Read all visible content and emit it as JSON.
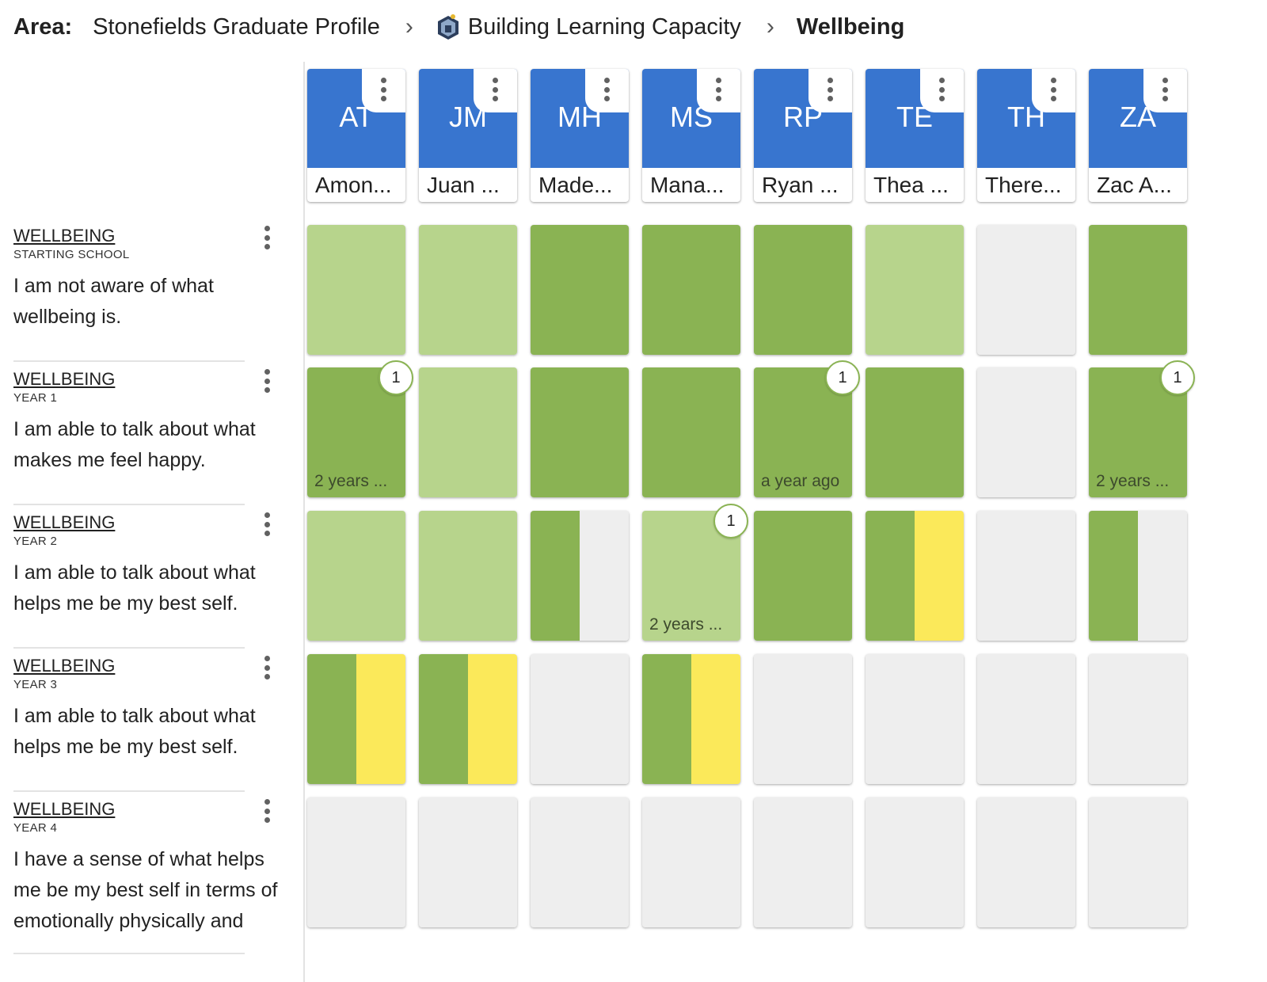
{
  "colors": {
    "accent_blue": "#3875cf",
    "green_dark": "#8ab353",
    "green_light": "#b7d48c",
    "yellow": "#fbe95a",
    "empty": "#eeeeee"
  },
  "breadcrumb": {
    "area_label": "Area:",
    "items": [
      "Stonefields Graduate Profile",
      "Building Learning Capacity",
      "Wellbeing"
    ]
  },
  "students": [
    {
      "initials": "AT",
      "name": "Amon..."
    },
    {
      "initials": "JM",
      "name": "Juan ..."
    },
    {
      "initials": "MH",
      "name": "Made..."
    },
    {
      "initials": "MS",
      "name": "Mana..."
    },
    {
      "initials": "RP",
      "name": "Ryan ..."
    },
    {
      "initials": "TE",
      "name": "Thea ..."
    },
    {
      "initials": "TH",
      "name": "There..."
    },
    {
      "initials": "ZA",
      "name": "Zac A..."
    }
  ],
  "rows": [
    {
      "title": "WELLBEING",
      "level": "STARTING SCHOOL",
      "description": "I am not aware of what wellbeing is."
    },
    {
      "title": "WELLBEING",
      "level": "YEAR 1",
      "description": "I am able to talk about what makes me feel happy."
    },
    {
      "title": "WELLBEING",
      "level": "YEAR 2",
      "description": "I am able to talk about what helps me be my best self."
    },
    {
      "title": "WELLBEING",
      "level": "YEAR 3",
      "description": "I am able to talk about what helps me be my best self."
    },
    {
      "title": "WELLBEING",
      "level": "YEAR 4",
      "description": "I have a sense of what helps me be my best self in terms of emotionally physically and"
    }
  ],
  "grid": [
    [
      {
        "fill": [
          "green_light"
        ]
      },
      {
        "fill": [
          "green_light"
        ]
      },
      {
        "fill": [
          "green_dark"
        ]
      },
      {
        "fill": [
          "green_dark"
        ]
      },
      {
        "fill": [
          "green_dark"
        ]
      },
      {
        "fill": [
          "green_light"
        ]
      },
      {
        "fill": [
          "empty"
        ]
      },
      {
        "fill": [
          "green_dark"
        ]
      }
    ],
    [
      {
        "fill": [
          "green_dark"
        ],
        "ago": "2 years ...",
        "badge": "1"
      },
      {
        "fill": [
          "green_light"
        ]
      },
      {
        "fill": [
          "green_dark"
        ]
      },
      {
        "fill": [
          "green_dark"
        ]
      },
      {
        "fill": [
          "green_dark"
        ],
        "ago": "a year ago",
        "badge": "1"
      },
      {
        "fill": [
          "green_dark"
        ]
      },
      {
        "fill": [
          "empty"
        ]
      },
      {
        "fill": [
          "green_dark"
        ],
        "ago": "2 years ...",
        "badge": "1"
      }
    ],
    [
      {
        "fill": [
          "green_light"
        ]
      },
      {
        "fill": [
          "green_light"
        ]
      },
      {
        "fill": [
          "green_dark",
          "empty"
        ]
      },
      {
        "fill": [
          "green_light"
        ],
        "ago": "2 years ...",
        "badge": "1"
      },
      {
        "fill": [
          "green_dark"
        ]
      },
      {
        "fill": [
          "green_dark",
          "yellow"
        ]
      },
      {
        "fill": [
          "empty"
        ]
      },
      {
        "fill": [
          "green_dark",
          "empty"
        ]
      }
    ],
    [
      {
        "fill": [
          "green_dark",
          "yellow"
        ]
      },
      {
        "fill": [
          "green_dark",
          "yellow"
        ]
      },
      {
        "fill": [
          "empty"
        ]
      },
      {
        "fill": [
          "green_dark",
          "yellow"
        ]
      },
      {
        "fill": [
          "empty"
        ]
      },
      {
        "fill": [
          "empty"
        ]
      },
      {
        "fill": [
          "empty"
        ]
      },
      {
        "fill": [
          "empty"
        ]
      }
    ],
    [
      {
        "fill": [
          "empty"
        ]
      },
      {
        "fill": [
          "empty"
        ]
      },
      {
        "fill": [
          "empty"
        ]
      },
      {
        "fill": [
          "empty"
        ]
      },
      {
        "fill": [
          "empty"
        ]
      },
      {
        "fill": [
          "empty"
        ]
      },
      {
        "fill": [
          "empty"
        ]
      },
      {
        "fill": [
          "empty"
        ]
      }
    ]
  ]
}
